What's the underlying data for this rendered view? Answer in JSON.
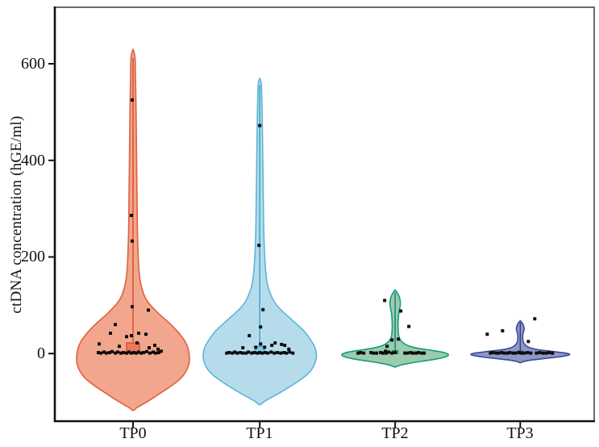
{
  "figure": {
    "background": "#ffffff",
    "border_color": "#3c3c3c",
    "axis_color": "#111111",
    "point_color": "#0d0d0d"
  },
  "chart_data": {
    "type": "violin",
    "title": "",
    "xlabel": "",
    "ylabel": "ctDNA concentration (hGE/ml)",
    "categories": [
      "TP0",
      "TP1",
      "TP2",
      "TP3"
    ],
    "y_ticks": [
      0,
      200,
      400,
      600
    ],
    "ylim": [
      -140,
      717
    ],
    "grid": false,
    "legend": "none",
    "series": [
      {
        "name": "TP0",
        "fill": "#F2A68D",
        "stroke": "#E0603E",
        "box_fill": "#EB7B5D",
        "box_stroke": "#D04C2A",
        "stem_color": "#D04C2A",
        "whisker_top": 612,
        "box": {
          "lo": 1,
          "hi": 22,
          "halfwidth": 8
        },
        "profile": [
          [
            630,
            0
          ],
          [
            612,
            2.5
          ],
          [
            560,
            3.2
          ],
          [
            500,
            3.8
          ],
          [
            440,
            4.2
          ],
          [
            380,
            4.6
          ],
          [
            320,
            5
          ],
          [
            260,
            5.4
          ],
          [
            200,
            6.5
          ],
          [
            170,
            7.5
          ],
          [
            150,
            9
          ],
          [
            135,
            11
          ],
          [
            120,
            14
          ],
          [
            108,
            18
          ],
          [
            96,
            24
          ],
          [
            84,
            31
          ],
          [
            72,
            39
          ],
          [
            60,
            47
          ],
          [
            48,
            54
          ],
          [
            36,
            60
          ],
          [
            24,
            65
          ],
          [
            12,
            68
          ],
          [
            0,
            69.5
          ],
          [
            -12,
            70
          ],
          [
            -24,
            69
          ],
          [
            -36,
            66
          ],
          [
            -48,
            61
          ],
          [
            -60,
            53
          ],
          [
            -72,
            43
          ],
          [
            -84,
            32
          ],
          [
            -96,
            21
          ],
          [
            -106,
            11
          ],
          [
            -113,
            4
          ],
          [
            -118,
            0
          ]
        ],
        "points": [
          [
            -1,
            525
          ],
          [
            -2,
            286
          ],
          [
            -1,
            233
          ],
          [
            -1,
            97
          ],
          [
            19,
            90
          ],
          [
            -22,
            60
          ],
          [
            -28,
            42
          ],
          [
            7,
            42
          ],
          [
            16,
            40
          ],
          [
            -2,
            37
          ],
          [
            -8,
            35
          ],
          [
            5,
            22
          ],
          [
            -42,
            20
          ],
          [
            27,
            17
          ],
          [
            -17,
            15
          ],
          [
            20,
            12
          ],
          [
            31,
            9
          ],
          [
            -43,
            2
          ],
          [
            -40,
            1
          ],
          [
            -36,
            3
          ],
          [
            -33,
            1
          ],
          [
            -29,
            2
          ],
          [
            -26,
            4
          ],
          [
            -22,
            1
          ],
          [
            -19,
            3
          ],
          [
            -15,
            1
          ],
          [
            -12,
            2
          ],
          [
            -8,
            1
          ],
          [
            -5,
            3
          ],
          [
            -2,
            1
          ],
          [
            1,
            2
          ],
          [
            4,
            1
          ],
          [
            7,
            3
          ],
          [
            10,
            1
          ],
          [
            13,
            2
          ],
          [
            17,
            4
          ],
          [
            21,
            1
          ],
          [
            25,
            3
          ],
          [
            28,
            1
          ],
          [
            32,
            2
          ],
          [
            35,
            5
          ]
        ]
      },
      {
        "name": "TP1",
        "fill": "#B6DCEC",
        "stroke": "#5AB6D7",
        "box_fill": "#86C8DF",
        "box_stroke": "#3E9EC4",
        "stem_color": "#3E9EC4",
        "whisker_top": 556,
        "box": {
          "lo": 0,
          "hi": 15,
          "halfwidth": 5.5
        },
        "profile": [
          [
            570,
            0
          ],
          [
            556,
            2
          ],
          [
            510,
            2.8
          ],
          [
            470,
            3.2
          ],
          [
            420,
            3.6
          ],
          [
            370,
            4
          ],
          [
            320,
            4.4
          ],
          [
            270,
            4.8
          ],
          [
            230,
            5.4
          ],
          [
            190,
            6.5
          ],
          [
            160,
            8
          ],
          [
            140,
            10
          ],
          [
            125,
            13
          ],
          [
            110,
            17
          ],
          [
            98,
            22
          ],
          [
            86,
            29
          ],
          [
            74,
            37
          ],
          [
            62,
            45
          ],
          [
            50,
            53
          ],
          [
            38,
            59
          ],
          [
            26,
            64
          ],
          [
            14,
            68
          ],
          [
            2,
            70
          ],
          [
            -10,
            70
          ],
          [
            -22,
            68
          ],
          [
            -34,
            64
          ],
          [
            -46,
            57
          ],
          [
            -58,
            47
          ],
          [
            -70,
            36
          ],
          [
            -82,
            24
          ],
          [
            -92,
            13
          ],
          [
            -100,
            5
          ],
          [
            -106,
            0
          ]
        ],
        "points": [
          [
            0,
            472
          ],
          [
            -1,
            224
          ],
          [
            4,
            91
          ],
          [
            1,
            55
          ],
          [
            -13,
            37
          ],
          [
            -21,
            12
          ],
          [
            -5,
            13
          ],
          [
            1,
            20
          ],
          [
            6,
            13
          ],
          [
            15,
            17
          ],
          [
            19,
            22
          ],
          [
            27,
            19
          ],
          [
            31,
            17
          ],
          [
            36,
            9
          ],
          [
            -41,
            1
          ],
          [
            -38,
            2
          ],
          [
            -34,
            1
          ],
          [
            -31,
            3
          ],
          [
            -28,
            1
          ],
          [
            -24,
            2
          ],
          [
            -21,
            1
          ],
          [
            -17,
            1
          ],
          [
            -14,
            3
          ],
          [
            -10,
            1
          ],
          [
            -7,
            2
          ],
          [
            -3,
            1
          ],
          [
            0,
            2
          ],
          [
            3,
            1
          ],
          [
            7,
            2
          ],
          [
            10,
            1
          ],
          [
            14,
            3
          ],
          [
            18,
            1
          ],
          [
            22,
            2
          ],
          [
            26,
            1
          ],
          [
            30,
            2
          ],
          [
            33,
            1
          ],
          [
            37,
            3
          ],
          [
            41,
            1
          ]
        ]
      },
      {
        "name": "TP2",
        "fill": "#9CCBAE",
        "stroke": "#139E7C",
        "box_fill": "#63B191",
        "box_stroke": "#0E8367",
        "stem_color": "#0E8367",
        "whisker_top": 126,
        "box": {
          "lo": 0,
          "hi": 6,
          "halfwidth": 3.5
        },
        "profile": [
          [
            132,
            0
          ],
          [
            126,
            2.5
          ],
          [
            120,
            4.5
          ],
          [
            112,
            6
          ],
          [
            104,
            6.5
          ],
          [
            96,
            6
          ],
          [
            88,
            5
          ],
          [
            78,
            4.2
          ],
          [
            68,
            3.8
          ],
          [
            58,
            3.6
          ],
          [
            48,
            3.8
          ],
          [
            40,
            4.2
          ],
          [
            33,
            5
          ],
          [
            27,
            7
          ],
          [
            22,
            10
          ],
          [
            17,
            15
          ],
          [
            13,
            23
          ],
          [
            10,
            32
          ],
          [
            7,
            44
          ],
          [
            4,
            55
          ],
          [
            1,
            63
          ],
          [
            -2,
            66
          ],
          [
            -5,
            65
          ],
          [
            -8,
            60
          ],
          [
            -11,
            52
          ],
          [
            -14,
            41
          ],
          [
            -17,
            29
          ],
          [
            -20,
            18
          ],
          [
            -23,
            9
          ],
          [
            -26,
            3
          ],
          [
            -28,
            0
          ]
        ],
        "points": [
          [
            -13,
            110
          ],
          [
            7,
            88
          ],
          [
            17,
            56
          ],
          [
            4,
            30
          ],
          [
            -4,
            28
          ],
          [
            -10,
            15
          ],
          [
            -12,
            5
          ],
          [
            -46,
            1
          ],
          [
            -43,
            2
          ],
          [
            -39,
            1
          ],
          [
            -30,
            2
          ],
          [
            -27,
            1
          ],
          [
            -23,
            1
          ],
          [
            -18,
            2
          ],
          [
            -15,
            1
          ],
          [
            -11,
            1
          ],
          [
            -8,
            3
          ],
          [
            -4,
            1
          ],
          [
            0,
            2
          ],
          [
            12,
            1
          ],
          [
            15,
            1
          ],
          [
            19,
            2
          ],
          [
            22,
            1
          ],
          [
            26,
            1
          ],
          [
            29,
            2
          ],
          [
            33,
            1
          ],
          [
            36,
            1
          ]
        ]
      },
      {
        "name": "TP3",
        "fill": "#8F98C6",
        "stroke": "#3A4A99",
        "box_fill": "#6973AF",
        "box_stroke": "#2D3B84",
        "stem_color": "#2D3B84",
        "whisker_top": 64,
        "box": {
          "lo": 0,
          "hi": 5,
          "halfwidth": 3
        },
        "profile": [
          [
            68,
            0
          ],
          [
            64,
            2
          ],
          [
            60,
            3.5
          ],
          [
            55,
            4.5
          ],
          [
            50,
            4.8
          ],
          [
            45,
            4
          ],
          [
            40,
            3.2
          ],
          [
            34,
            3
          ],
          [
            28,
            3.2
          ],
          [
            23,
            4
          ],
          [
            19,
            5.5
          ],
          [
            15,
            8
          ],
          [
            12,
            12
          ],
          [
            9,
            19
          ],
          [
            7,
            27
          ],
          [
            5,
            37
          ],
          [
            3,
            47
          ],
          [
            1,
            56
          ],
          [
            -1,
            61
          ],
          [
            -3,
            60
          ],
          [
            -5,
            55
          ],
          [
            -7,
            47
          ],
          [
            -9,
            37
          ],
          [
            -11,
            26
          ],
          [
            -13,
            16
          ],
          [
            -15,
            8
          ],
          [
            -17,
            3
          ],
          [
            -19,
            0
          ]
        ],
        "points": [
          [
            -41,
            40
          ],
          [
            -22,
            47
          ],
          [
            18,
            72
          ],
          [
            10,
            25
          ],
          [
            -37,
            1
          ],
          [
            -34,
            2
          ],
          [
            -30,
            1
          ],
          [
            -27,
            1
          ],
          [
            -23,
            2
          ],
          [
            -20,
            1
          ],
          [
            -16,
            1
          ],
          [
            -13,
            2
          ],
          [
            -9,
            1
          ],
          [
            -6,
            1
          ],
          [
            -2,
            2
          ],
          [
            1,
            1
          ],
          [
            5,
            1
          ],
          [
            9,
            2
          ],
          [
            13,
            1
          ],
          [
            20,
            1
          ],
          [
            24,
            2
          ],
          [
            28,
            1
          ],
          [
            32,
            1
          ],
          [
            36,
            2
          ],
          [
            40,
            1
          ]
        ]
      }
    ]
  }
}
